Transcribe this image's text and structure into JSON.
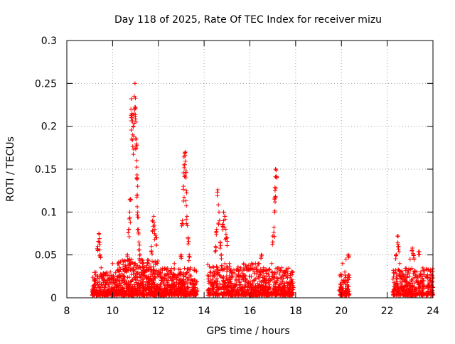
{
  "chart_data": {
    "type": "scatter",
    "title": "Day 118 of 2025, Rate Of TEC Index for receiver mizu",
    "xlabel": "GPS time / hours",
    "ylabel": "ROTI / TECUs",
    "xlim": [
      8,
      24
    ],
    "ylim": [
      0,
      0.3
    ],
    "x_ticks": [
      8,
      10,
      12,
      14,
      16,
      18,
      20,
      22,
      24
    ],
    "x_tick_labels": [
      "8",
      "10",
      "12",
      "14",
      "16",
      "18",
      "20",
      "22",
      "24"
    ],
    "y_ticks": [
      0,
      0.05,
      0.1,
      0.15,
      0.2,
      0.25,
      0.3
    ],
    "y_tick_labels": [
      "0",
      "0.05",
      "0.1",
      "0.15",
      "0.2",
      "0.25",
      "0.3"
    ],
    "grid": true,
    "marker": "+",
    "series_color": "#ff0000",
    "series": [
      {
        "name": "ROTI",
        "points": [
          [
            9.2,
            0.012
          ],
          [
            9.25,
            0.02
          ],
          [
            9.3,
            0.008
          ],
          [
            9.35,
            0.06
          ],
          [
            9.4,
            0.075
          ],
          [
            9.42,
            0.065
          ],
          [
            9.45,
            0.05
          ],
          [
            9.5,
            0.035
          ],
          [
            9.55,
            0.025
          ],
          [
            9.6,
            0.018
          ],
          [
            9.7,
            0.015
          ],
          [
            9.8,
            0.022
          ],
          [
            9.9,
            0.03
          ],
          [
            10.0,
            0.04
          ],
          [
            10.05,
            0.012
          ],
          [
            10.2,
            0.02
          ],
          [
            10.3,
            0.015
          ],
          [
            10.45,
            0.01
          ],
          [
            10.6,
            0.03
          ],
          [
            10.65,
            0.05
          ],
          [
            10.7,
            0.08
          ],
          [
            10.75,
            0.1
          ],
          [
            10.78,
            0.115
          ],
          [
            10.8,
            0.22
          ],
          [
            10.82,
            0.232
          ],
          [
            10.85,
            0.215
          ],
          [
            10.88,
            0.19
          ],
          [
            10.9,
            0.2
          ],
          [
            10.95,
            0.235
          ],
          [
            10.98,
            0.25
          ],
          [
            11.0,
            0.222
          ],
          [
            11.02,
            0.205
          ],
          [
            11.04,
            0.185
          ],
          [
            11.05,
            0.16
          ],
          [
            11.07,
            0.14
          ],
          [
            11.08,
            0.12
          ],
          [
            11.1,
            0.1
          ],
          [
            11.12,
            0.08
          ],
          [
            11.15,
            0.065
          ],
          [
            11.2,
            0.05
          ],
          [
            11.3,
            0.04
          ],
          [
            11.4,
            0.03
          ],
          [
            11.5,
            0.025
          ],
          [
            11.6,
            0.035
          ],
          [
            11.7,
            0.06
          ],
          [
            11.75,
            0.09
          ],
          [
            11.8,
            0.095
          ],
          [
            11.85,
            0.08
          ],
          [
            11.9,
            0.07
          ],
          [
            11.95,
            0.04
          ],
          [
            12.0,
            0.03
          ],
          [
            12.1,
            0.025
          ],
          [
            12.2,
            0.02
          ],
          [
            12.35,
            0.015
          ],
          [
            12.5,
            0.012
          ],
          [
            12.6,
            0.02
          ],
          [
            12.7,
            0.04
          ],
          [
            12.8,
            0.018
          ],
          [
            12.95,
            0.03
          ],
          [
            13.0,
            0.05
          ],
          [
            13.05,
            0.09
          ],
          [
            13.1,
            0.13
          ],
          [
            13.12,
            0.155
          ],
          [
            13.15,
            0.168
          ],
          [
            13.18,
            0.17
          ],
          [
            13.2,
            0.148
          ],
          [
            13.22,
            0.125
          ],
          [
            13.25,
            0.095
          ],
          [
            13.3,
            0.07
          ],
          [
            13.35,
            0.05
          ],
          [
            13.4,
            0.035
          ],
          [
            13.5,
            0.02
          ],
          [
            13.6,
            0.012
          ],
          [
            14.2,
            0.01
          ],
          [
            14.3,
            0.02
          ],
          [
            14.4,
            0.03
          ],
          [
            14.5,
            0.06
          ],
          [
            14.55,
            0.08
          ],
          [
            14.6,
            0.126
          ],
          [
            14.65,
            0.1
          ],
          [
            14.7,
            0.065
          ],
          [
            14.75,
            0.05
          ],
          [
            14.8,
            0.085
          ],
          [
            14.85,
            0.1
          ],
          [
            14.9,
            0.095
          ],
          [
            14.95,
            0.08
          ],
          [
            15.0,
            0.07
          ],
          [
            15.1,
            0.04
          ],
          [
            15.2,
            0.03
          ],
          [
            15.4,
            0.02
          ],
          [
            15.6,
            0.035
          ],
          [
            15.8,
            0.015
          ],
          [
            16.0,
            0.025
          ],
          [
            16.2,
            0.03
          ],
          [
            16.4,
            0.04
          ],
          [
            16.5,
            0.05
          ],
          [
            16.6,
            0.035
          ],
          [
            16.8,
            0.02
          ],
          [
            16.95,
            0.04
          ],
          [
            17.0,
            0.072
          ],
          [
            17.05,
            0.082
          ],
          [
            17.08,
            0.115
          ],
          [
            17.1,
            0.125
          ],
          [
            17.12,
            0.15
          ],
          [
            17.15,
            0.149
          ],
          [
            17.2,
            0.03
          ],
          [
            17.4,
            0.035
          ],
          [
            17.6,
            0.025
          ],
          [
            17.8,
            0.02
          ],
          [
            17.9,
            0.012
          ],
          [
            20.0,
            0.01
          ],
          [
            20.05,
            0.04
          ],
          [
            20.1,
            0.02
          ],
          [
            20.15,
            0.03
          ],
          [
            20.2,
            0.045
          ],
          [
            20.25,
            0.015
          ],
          [
            20.3,
            0.05
          ],
          [
            22.3,
            0.01
          ],
          [
            22.4,
            0.05
          ],
          [
            22.45,
            0.072
          ],
          [
            22.5,
            0.06
          ],
          [
            22.55,
            0.04
          ],
          [
            22.6,
            0.03
          ],
          [
            22.7,
            0.025
          ],
          [
            22.8,
            0.02
          ],
          [
            22.9,
            0.03
          ],
          [
            23.0,
            0.045
          ],
          [
            23.1,
            0.058
          ],
          [
            23.15,
            0.05
          ],
          [
            23.2,
            0.03
          ],
          [
            23.3,
            0.02
          ],
          [
            23.4,
            0.054
          ],
          [
            23.5,
            0.025
          ],
          [
            23.6,
            0.02
          ],
          [
            23.7,
            0.025
          ],
          [
            23.8,
            0.015
          ],
          [
            23.9,
            0.02
          ],
          [
            24.0,
            0.012
          ]
        ]
      }
    ],
    "dense_segments": [
      {
        "x": [
          9.1,
          10.2
        ],
        "y": [
          0.003,
          0.03
        ],
        "count": 260
      },
      {
        "x": [
          10.2,
          12.0
        ],
        "y": [
          0.003,
          0.045
        ],
        "count": 520
      },
      {
        "x": [
          12.0,
          13.7
        ],
        "y": [
          0.003,
          0.035
        ],
        "count": 420
      },
      {
        "x": [
          14.15,
          16.4
        ],
        "y": [
          0.003,
          0.04
        ],
        "count": 480
      },
      {
        "x": [
          16.4,
          17.9
        ],
        "y": [
          0.003,
          0.035
        ],
        "count": 360
      },
      {
        "x": [
          19.9,
          20.35
        ],
        "y": [
          0.003,
          0.03
        ],
        "count": 90
      },
      {
        "x": [
          22.25,
          24.0
        ],
        "y": [
          0.003,
          0.035
        ],
        "count": 380
      }
    ]
  }
}
